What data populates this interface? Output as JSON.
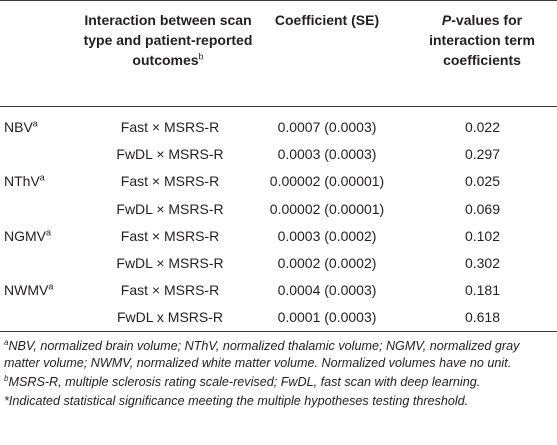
{
  "headers": {
    "interaction": "Interaction between scan type and patient-reported outcomes",
    "interaction_sup": "b",
    "coefficient": "Coefficient (SE)",
    "pvalue_italic": "P",
    "pvalue_rest": "-values for interaction term coefficients"
  },
  "rows": [
    {
      "measure": "NBV",
      "sup": "a",
      "interaction": "Fast × MSRS-R",
      "coefficient": "0.0007 (0.0003)",
      "p": "0.022"
    },
    {
      "measure": "",
      "sup": "",
      "interaction": "FwDL × MSRS-R",
      "coefficient": "0.0003 (0.0003)",
      "p": "0.297"
    },
    {
      "measure": "NThV",
      "sup": "a",
      "interaction": "Fast × MSRS-R",
      "coefficient": "0.00002 (0.00001)",
      "p": "0.025"
    },
    {
      "measure": "",
      "sup": "",
      "interaction": "FwDL × MSRS-R",
      "coefficient": "0.00002 (0.00001)",
      "p": "0.069"
    },
    {
      "measure": "NGMV",
      "sup": "a",
      "interaction": "Fast × MSRS-R",
      "coefficient": "0.0003 (0.0002)",
      "p": "0.102"
    },
    {
      "measure": "",
      "sup": "",
      "interaction": "FwDL × MSRS-R",
      "coefficient": "0.0002 (0.0002)",
      "p": "0.302"
    },
    {
      "measure": "NWMV",
      "sup": "a",
      "interaction": "Fast × MSRS-R",
      "coefficient": "0.0004 (0.0003)",
      "p": "0.181"
    },
    {
      "measure": "",
      "sup": "",
      "interaction": "FwDL x MSRS-R",
      "coefficient": "0.0001 (0.0003)",
      "p": "0.618"
    }
  ],
  "footnotes": [
    {
      "sup": "a",
      "text": "NBV, normalized brain volume; NThV, normalized thalamic volume; NGMV, normalized gray matter volume; NWMV, normalized white matter volume. Normalized volumes have no unit."
    },
    {
      "sup": "b",
      "text": "MSRS-R, multiple sclerosis rating scale-revised; FwDL, fast scan with deep learning."
    },
    {
      "sup": "",
      "text": "*Indicated statistical significance meeting the multiple hypotheses testing threshold."
    }
  ]
}
